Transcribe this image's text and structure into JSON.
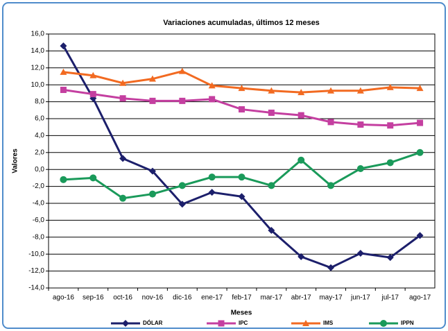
{
  "chart_data": {
    "type": "line",
    "title": "Variaciones acumuladas, últimos 12 meses",
    "x_label": "Meses",
    "y_label": "Valores",
    "categories": [
      "ago-16",
      "sep-16",
      "oct-16",
      "nov-16",
      "dic-16",
      "ene-17",
      "feb-17",
      "mar-17",
      "abr-17",
      "may-17",
      "jun-17",
      "jul-17",
      "ago-17"
    ],
    "series": [
      {
        "name": "DÓLAR",
        "color": "#1c1f6b",
        "marker": "diamond",
        "values": [
          14.6,
          8.4,
          1.3,
          -0.2,
          -4.1,
          -2.7,
          -3.2,
          -7.2,
          -10.3,
          -11.6,
          -9.9,
          -10.4,
          -7.8
        ]
      },
      {
        "name": "IPC",
        "color": "#c43fa0",
        "marker": "square",
        "values": [
          9.4,
          8.9,
          8.4,
          8.1,
          8.1,
          8.3,
          7.1,
          6.7,
          6.4,
          5.6,
          5.3,
          5.2,
          5.5
        ]
      },
      {
        "name": "IMS",
        "color": "#f26a21",
        "marker": "triangle",
        "values": [
          11.5,
          11.1,
          10.2,
          10.7,
          11.6,
          9.9,
          9.6,
          9.3,
          9.1,
          9.3,
          9.3,
          9.7,
          9.6
        ]
      },
      {
        "name": "IPPN",
        "color": "#1a9a5a",
        "marker": "circle",
        "values": [
          -1.2,
          -1.0,
          -3.4,
          -2.9,
          -1.9,
          -0.9,
          -0.9,
          -1.9,
          1.1,
          -1.9,
          0.1,
          0.8,
          2.0
        ]
      }
    ],
    "ylim": [
      -14,
      16
    ],
    "yticks": [
      {
        "value": -14,
        "label": "-14,0"
      },
      {
        "value": -12,
        "label": "-12,0"
      },
      {
        "value": -10,
        "label": "-10,0"
      },
      {
        "value": -8,
        "label": "-8,0"
      },
      {
        "value": -6,
        "label": "-6,0"
      },
      {
        "value": -4,
        "label": "-4,0"
      },
      {
        "value": -2,
        "label": "-2,0"
      },
      {
        "value": 0,
        "label": "0,0"
      },
      {
        "value": 2,
        "label": "2,0"
      },
      {
        "value": 4,
        "label": "4,0"
      },
      {
        "value": 6,
        "label": "6,0"
      },
      {
        "value": 8,
        "label": "8,0"
      },
      {
        "value": 10,
        "label": "10,0"
      },
      {
        "value": 12,
        "label": "12,0"
      },
      {
        "value": 14,
        "label": "14,0"
      },
      {
        "value": 16,
        "label": "16,0"
      }
    ],
    "grid": true,
    "legend": "bottom"
  }
}
